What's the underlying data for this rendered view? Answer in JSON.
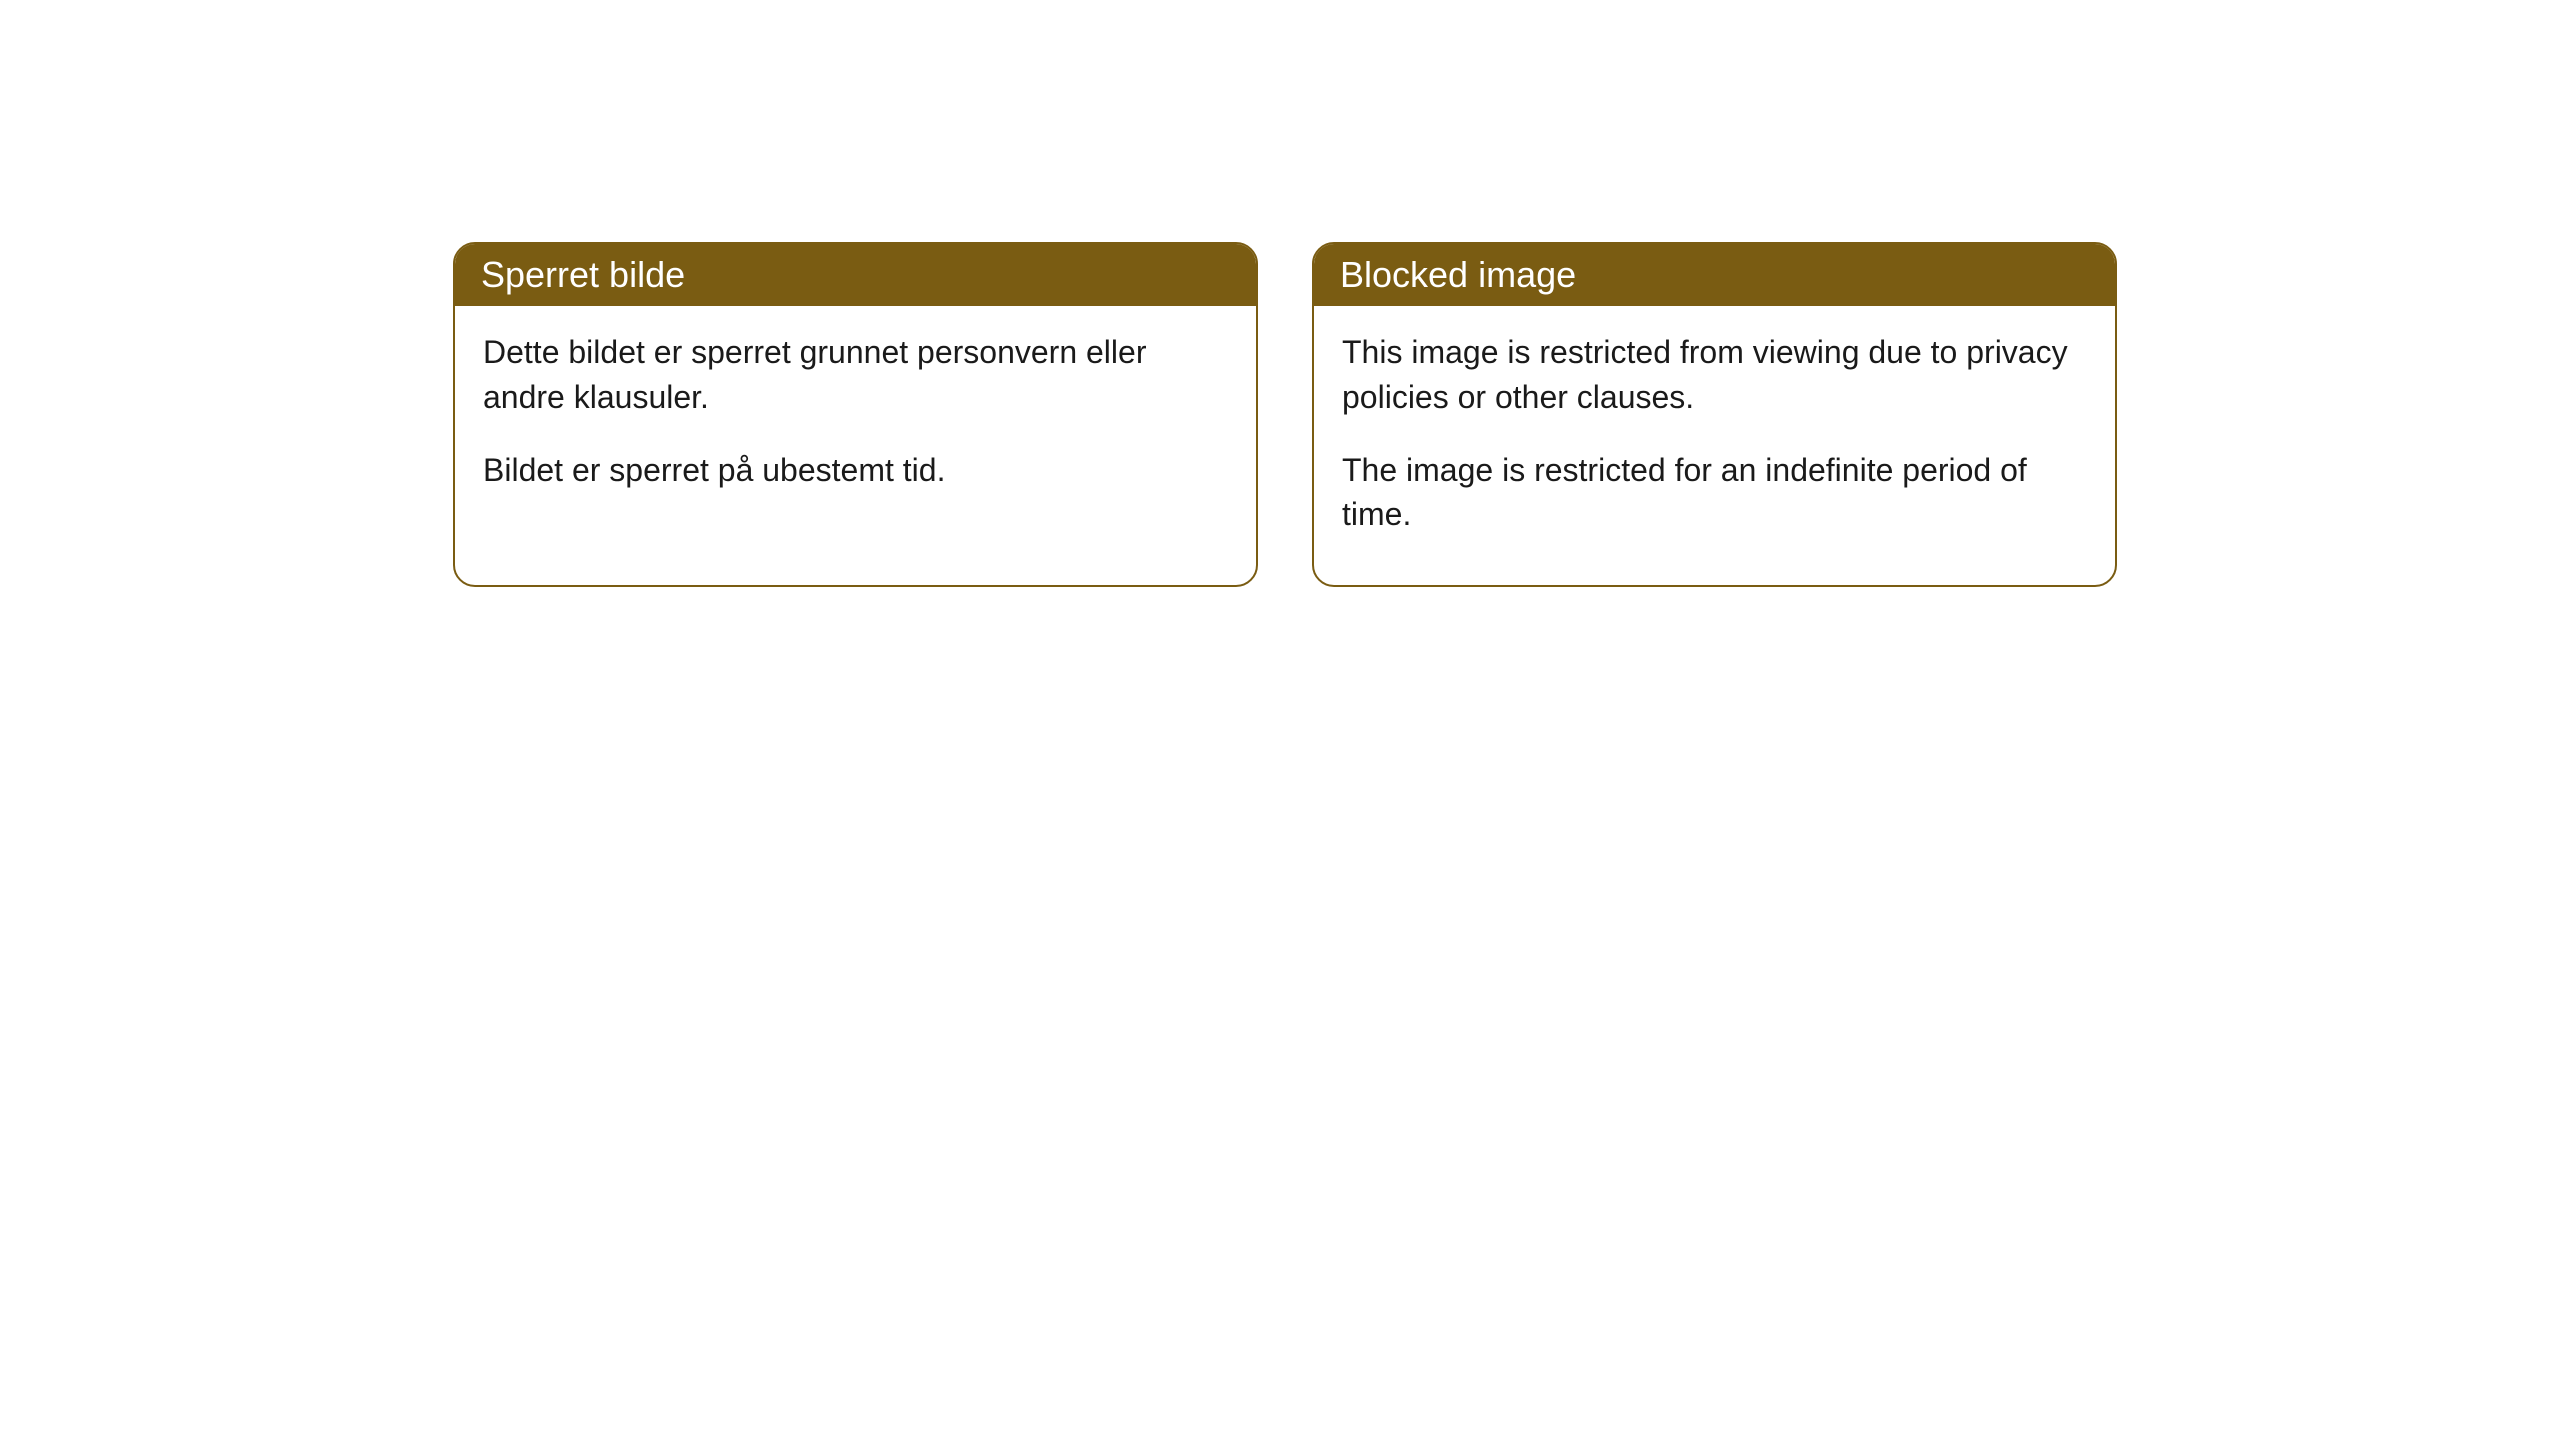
{
  "cards": [
    {
      "title": "Sperret bilde",
      "paragraph1": "Dette bildet er sperret grunnet personvern eller andre klausuler.",
      "paragraph2": "Bildet er sperret på ubestemt tid."
    },
    {
      "title": "Blocked image",
      "paragraph1": "This image is restricted from viewing due to privacy policies or other clauses.",
      "paragraph2": "The image is restricted for an indefinite period of time."
    }
  ],
  "style": {
    "header_background": "#7a5c12",
    "header_text_color": "#ffffff",
    "border_color": "#7a5c12",
    "body_text_color": "#1a1a1a",
    "background_color": "#ffffff",
    "border_radius": 22,
    "title_fontsize": 36,
    "body_fontsize": 32
  }
}
